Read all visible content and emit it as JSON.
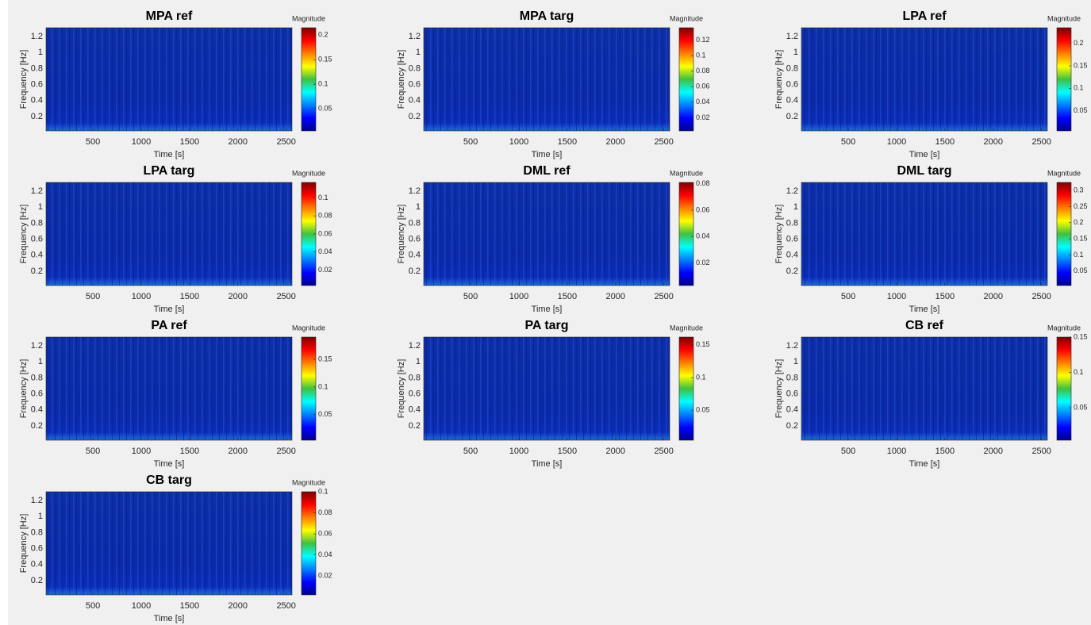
{
  "chart_data": [
    {
      "type": "scalogram",
      "title": "MPA ref",
      "xlabel": "Time [s]",
      "ylabel": "Frequency [Hz]",
      "xlim": [
        15,
        2560
      ],
      "xticks": [
        500,
        1000,
        1500,
        2000,
        2500
      ],
      "ylim": [
        0.02,
        1.31
      ],
      "yticks": [
        0.2,
        0.4,
        0.6,
        0.8,
        1,
        1.2
      ],
      "colorbar": {
        "label": "Magnitude",
        "lim": [
          0.005,
          0.215
        ],
        "ticks": [
          0.05,
          0.1,
          0.15,
          0.2
        ]
      }
    },
    {
      "type": "scalogram",
      "title": "MPA targ",
      "xlabel": "Time [s]",
      "ylabel": "Frequency [Hz]",
      "xlim": [
        15,
        2560
      ],
      "xticks": [
        500,
        1000,
        1500,
        2000,
        2500
      ],
      "ylim": [
        0.02,
        1.31
      ],
      "yticks": [
        0.2,
        0.4,
        0.6,
        0.8,
        1,
        1.2
      ],
      "colorbar": {
        "label": "Magnitude",
        "lim": [
          0.003,
          0.136
        ],
        "ticks": [
          0.02,
          0.04,
          0.06,
          0.08,
          0.1,
          0.12
        ]
      }
    },
    {
      "type": "scalogram",
      "title": "LPA ref",
      "xlabel": "Time [s]",
      "ylabel": "Frequency [Hz]",
      "xlim": [
        15,
        2560
      ],
      "xticks": [
        500,
        1000,
        1500,
        2000,
        2500
      ],
      "ylim": [
        0.02,
        1.31
      ],
      "yticks": [
        0.2,
        0.4,
        0.6,
        0.8,
        1,
        1.2
      ],
      "colorbar": {
        "label": "Magnitude",
        "lim": [
          0.005,
          0.235
        ],
        "ticks": [
          0.05,
          0.1,
          0.15,
          0.2
        ]
      }
    },
    {
      "type": "scalogram",
      "title": "LPA targ",
      "xlabel": "Time [s]",
      "ylabel": "Frequency [Hz]",
      "xlim": [
        15,
        2560
      ],
      "xticks": [
        500,
        1000,
        1500,
        2000,
        2500
      ],
      "ylim": [
        0.02,
        1.31
      ],
      "yticks": [
        0.2,
        0.4,
        0.6,
        0.8,
        1,
        1.2
      ],
      "colorbar": {
        "label": "Magnitude",
        "lim": [
          0.003,
          0.117
        ],
        "ticks": [
          0.02,
          0.04,
          0.06,
          0.08,
          0.1
        ]
      }
    },
    {
      "type": "scalogram",
      "title": "DML ref",
      "xlabel": "Time [s]",
      "ylabel": "Frequency [Hz]",
      "xlim": [
        15,
        2560
      ],
      "xticks": [
        500,
        1000,
        1500,
        2000,
        2500
      ],
      "ylim": [
        0.02,
        1.31
      ],
      "yticks": [
        0.2,
        0.4,
        0.6,
        0.8,
        1,
        1.2
      ],
      "colorbar": {
        "label": "Magnitude",
        "lim": [
          0.003,
          0.081
        ],
        "ticks": [
          0.02,
          0.04,
          0.06,
          0.08
        ]
      }
    },
    {
      "type": "scalogram",
      "title": "DML targ",
      "xlabel": "Time [s]",
      "ylabel": "Frequency [Hz]",
      "xlim": [
        15,
        2560
      ],
      "xticks": [
        500,
        1000,
        1500,
        2000,
        2500
      ],
      "ylim": [
        0.02,
        1.31
      ],
      "yticks": [
        0.2,
        0.4,
        0.6,
        0.8,
        1,
        1.2
      ],
      "colorbar": {
        "label": "Magnitude",
        "lim": [
          0.005,
          0.325
        ],
        "ticks": [
          0.05,
          0.1,
          0.15,
          0.2,
          0.25,
          0.3
        ]
      }
    },
    {
      "type": "scalogram",
      "title": "PA ref",
      "xlabel": "Time [s]",
      "ylabel": "Frequency [Hz]",
      "xlim": [
        15,
        2560
      ],
      "xticks": [
        500,
        1000,
        1500,
        2000,
        2500
      ],
      "ylim": [
        0.02,
        1.31
      ],
      "yticks": [
        0.2,
        0.4,
        0.6,
        0.8,
        1,
        1.2
      ],
      "colorbar": {
        "label": "Magnitude",
        "lim": [
          0.004,
          0.19
        ],
        "ticks": [
          0.05,
          0.1,
          0.15
        ]
      }
    },
    {
      "type": "scalogram",
      "title": "PA targ",
      "xlabel": "Time [s]",
      "ylabel": "Frequency [Hz]",
      "xlim": [
        15,
        2560
      ],
      "xticks": [
        500,
        1000,
        1500,
        2000,
        2500
      ],
      "ylim": [
        0.02,
        1.31
      ],
      "yticks": [
        0.2,
        0.4,
        0.6,
        0.8,
        1,
        1.2
      ],
      "colorbar": {
        "label": "Magnitude",
        "lim": [
          0.004,
          0.162
        ],
        "ticks": [
          0.05,
          0.1,
          0.15
        ]
      }
    },
    {
      "type": "scalogram",
      "title": "CB ref",
      "xlabel": "Time [s]",
      "ylabel": "Frequency [Hz]",
      "xlim": [
        15,
        2560
      ],
      "xticks": [
        500,
        1000,
        1500,
        2000,
        2500
      ],
      "ylim": [
        0.02,
        1.31
      ],
      "yticks": [
        0.2,
        0.4,
        0.6,
        0.8,
        1,
        1.2
      ],
      "colorbar": {
        "label": "Magnitude",
        "lim": [
          0.004,
          0.15
        ],
        "ticks": [
          0.05,
          0.1,
          0.15
        ]
      }
    },
    {
      "type": "scalogram",
      "title": "CB targ",
      "xlabel": "Time [s]",
      "ylabel": "Frequency [Hz]",
      "xlim": [
        15,
        2560
      ],
      "xticks": [
        500,
        1000,
        1500,
        2000,
        2500
      ],
      "ylim": [
        0.02,
        1.31
      ],
      "yticks": [
        0.2,
        0.4,
        0.6,
        0.8,
        1,
        1.2
      ],
      "colorbar": {
        "label": "Magnitude",
        "lim": [
          0.002,
          0.1
        ],
        "ticks": [
          0.02,
          0.04,
          0.06,
          0.08,
          0.1
        ]
      }
    }
  ]
}
